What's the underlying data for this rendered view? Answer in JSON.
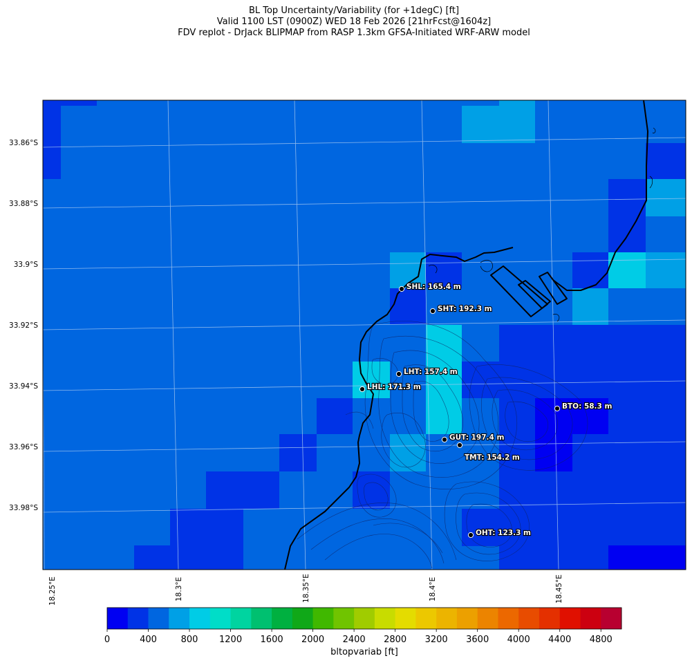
{
  "title": {
    "line1": "BL Top Uncertainty/Variability (for +1degC) [ft]",
    "line2": "Valid 1100 LST (0900Z) WED 18 Feb 2026 [21hrFcst@1604z]",
    "line3": "FDV replot - DrJack BLIPMAP from RASP 1.3km GFSA-Initiated WRF-ARW model"
  },
  "lat_labels": [
    "33.86°S",
    "33.88°S",
    "33.9°S",
    "33.92°S",
    "33.94°S",
    "33.96°S",
    "33.98°S"
  ],
  "lon_labels": [
    "18.25°E",
    "18.3°E",
    "18.35°E",
    "18.4°E",
    "18.45°E"
  ],
  "stations": [
    {
      "code": "SHL",
      "label": "SHL: 165.4 m"
    },
    {
      "code": "SHT",
      "label": "SHT: 192.3 m"
    },
    {
      "code": "LHT",
      "label": "LHT: 157.4 m"
    },
    {
      "code": "LHL",
      "label": "LHL: 171.3 m"
    },
    {
      "code": "BTO",
      "label": "BTO: 58.3 m"
    },
    {
      "code": "GUT",
      "label": "GUT: 197.4 m"
    },
    {
      "code": "TMT",
      "label": "TMT: 154.2 m"
    },
    {
      "code": "OHT",
      "label": "OHT: 123.3 m"
    }
  ],
  "colorbar": {
    "label": "bltopvariab [ft]",
    "min": 0,
    "max": 5000,
    "step": 200,
    "tick_labels": [
      "0",
      "400",
      "800",
      "1200",
      "1600",
      "2000",
      "2400",
      "2800",
      "3200",
      "3600",
      "4000",
      "4400",
      "4800"
    ],
    "colors": [
      "#0000f2",
      "#0033e6",
      "#0066e0",
      "#00a0e6",
      "#00cce6",
      "#00ddc8",
      "#00d4a0",
      "#00c070",
      "#00b040",
      "#10a818",
      "#40b800",
      "#70c400",
      "#a0cc00",
      "#c8dc00",
      "#e4dc00",
      "#ecc800",
      "#ecb400",
      "#eca000",
      "#ec8400",
      "#ec6800",
      "#e84c00",
      "#e43000",
      "#e01000",
      "#cc0010",
      "#b80030"
    ]
  }
}
